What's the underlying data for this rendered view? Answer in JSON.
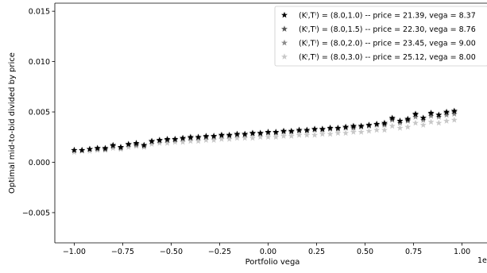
{
  "chart_data": {
    "type": "scatter",
    "marker": "star",
    "xlabel": "Portfolio vega",
    "ylabel": "Optimal mid-to-bid divided by price",
    "x_offset_text": "1e",
    "xlim": [
      -1.1,
      1.1
    ],
    "ylim": [
      -0.008,
      0.0158
    ],
    "xticks": [
      -1.0,
      -0.75,
      -0.5,
      -0.25,
      0.0,
      0.25,
      0.5,
      0.75,
      1.0
    ],
    "xtick_labels": [
      "−1.00",
      "−0.75",
      "−0.50",
      "−0.25",
      "0.00",
      "0.25",
      "0.50",
      "0.75",
      "1.00"
    ],
    "yticks": [
      -0.005,
      0.0,
      0.005,
      0.01,
      0.015
    ],
    "ytick_labels": [
      "−0.005",
      "0.000",
      "0.005",
      "0.010",
      "0.015"
    ],
    "grid": false,
    "legend_position": "top-right",
    "x": [
      -1.0,
      -0.96,
      -0.92,
      -0.88,
      -0.84,
      -0.8,
      -0.76,
      -0.72,
      -0.68,
      -0.64,
      -0.6,
      -0.56,
      -0.52,
      -0.48,
      -0.44,
      -0.4,
      -0.36,
      -0.32,
      -0.28,
      -0.24,
      -0.2,
      -0.16,
      -0.12,
      -0.08,
      -0.04,
      0.0,
      0.04,
      0.08,
      0.12,
      0.16,
      0.2,
      0.24,
      0.28,
      0.32,
      0.36,
      0.4,
      0.44,
      0.48,
      0.52,
      0.56,
      0.6,
      0.64,
      0.68,
      0.72,
      0.76,
      0.8,
      0.84,
      0.88,
      0.92,
      0.96
    ],
    "series": [
      {
        "name": "(Kⁱ,Tⁱ) = (8.0,1.0) -- price = 21.39, vega = 8.37",
        "color": "#000000",
        "values": [
          0.0012,
          0.0012,
          0.0013,
          0.0014,
          0.0014,
          0.0017,
          0.0015,
          0.0018,
          0.0019,
          0.0017,
          0.0021,
          0.0022,
          0.0023,
          0.0023,
          0.0024,
          0.0025,
          0.0025,
          0.0026,
          0.0026,
          0.0027,
          0.0027,
          0.0028,
          0.0028,
          0.0029,
          0.0029,
          0.003,
          0.003,
          0.0031,
          0.0031,
          0.0032,
          0.0032,
          0.0033,
          0.0033,
          0.0034,
          0.0034,
          0.0035,
          0.0036,
          0.0036,
          0.0037,
          0.0038,
          0.0039,
          0.0044,
          0.0041,
          0.0043,
          0.0048,
          0.0044,
          0.0049,
          0.0047,
          0.005,
          0.0051
        ]
      },
      {
        "name": "(Kⁱ,Tⁱ) = (8.0,1.5) -- price = 22.30, vega = 8.76",
        "color": "#555555",
        "values": [
          0.0012,
          0.0012,
          0.0013,
          0.0014,
          0.0013,
          0.0016,
          0.0015,
          0.0018,
          0.0018,
          0.0017,
          0.0021,
          0.0022,
          0.0022,
          0.0023,
          0.0024,
          0.0024,
          0.0025,
          0.0025,
          0.0026,
          0.0027,
          0.0027,
          0.0028,
          0.0028,
          0.0029,
          0.0029,
          0.003,
          0.003,
          0.0031,
          0.0031,
          0.0032,
          0.0032,
          0.0033,
          0.0033,
          0.0034,
          0.0034,
          0.0035,
          0.0035,
          0.0036,
          0.0037,
          0.0038,
          0.0038,
          0.0043,
          0.0041,
          0.0042,
          0.0047,
          0.0044,
          0.0048,
          0.0047,
          0.0049,
          0.005
        ]
      },
      {
        "name": "(Kⁱ,Tⁱ) = (8.0,2.0) -- price = 23.45, vega = 9.00",
        "color": "#8c8c8c",
        "values": [
          0.0012,
          0.0012,
          0.0013,
          0.0013,
          0.0013,
          0.0016,
          0.0014,
          0.0017,
          0.0017,
          0.0016,
          0.002,
          0.0021,
          0.0022,
          0.0022,
          0.0023,
          0.0024,
          0.0024,
          0.0025,
          0.0025,
          0.0026,
          0.0026,
          0.0027,
          0.0027,
          0.0028,
          0.0028,
          0.0029,
          0.0029,
          0.003,
          0.003,
          0.0031,
          0.0031,
          0.0032,
          0.0032,
          0.0033,
          0.0033,
          0.0034,
          0.0034,
          0.0035,
          0.0036,
          0.0037,
          0.0037,
          0.0042,
          0.0039,
          0.0041,
          0.0045,
          0.0042,
          0.0046,
          0.0045,
          0.0047,
          0.0048
        ]
      },
      {
        "name": "(Kⁱ,Tⁱ) = (8.0,3.0) -- price = 25.12, vega = 8.00",
        "color": "#c8c8c8",
        "values": [
          0.001,
          0.0011,
          0.0011,
          0.0012,
          0.0012,
          0.0014,
          0.0013,
          0.0015,
          0.0016,
          0.0015,
          0.0018,
          0.0019,
          0.0019,
          0.002,
          0.002,
          0.0021,
          0.0021,
          0.0022,
          0.0022,
          0.0023,
          0.0023,
          0.0024,
          0.0024,
          0.0024,
          0.0025,
          0.0025,
          0.0025,
          0.0026,
          0.0026,
          0.0027,
          0.0027,
          0.0027,
          0.0028,
          0.0028,
          0.0029,
          0.0029,
          0.003,
          0.003,
          0.0031,
          0.0032,
          0.0032,
          0.0036,
          0.0034,
          0.0035,
          0.0039,
          0.0037,
          0.004,
          0.0039,
          0.0041,
          0.0042
        ]
      }
    ]
  }
}
